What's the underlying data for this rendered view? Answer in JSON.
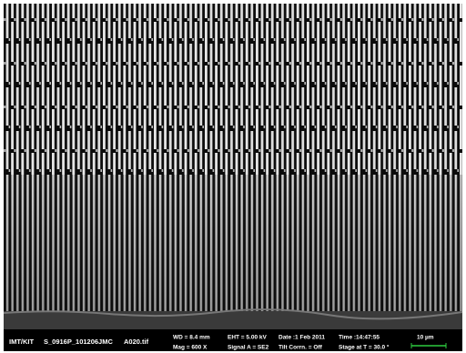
{
  "info_bar": {
    "file_origin": "IMT/KIT",
    "file_id": "S_0916P_101206JMC",
    "file_name": "A020.tif",
    "wd": "WD = 8.4 mm",
    "mag": "Mag = 600 X",
    "eht": "EHT = 5.00 kV",
    "signal": "Signal A = SE2",
    "date": "Date :1 Feb 2011",
    "tilt": "Tilt Corrn. = Off",
    "time": "Time :14:47:55",
    "stage": "Stage at T = 30.0 °",
    "scale": "10 µm"
  }
}
